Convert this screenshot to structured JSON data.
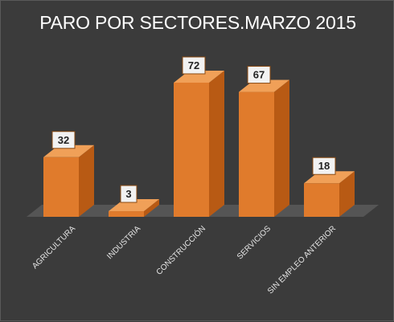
{
  "chart_data": {
    "type": "bar",
    "title": "PARO POR SECTORES.MARZO 2015",
    "categories": [
      "AGRICULTURA",
      "INDUSTRIA",
      "CONSTRUCCIÓN",
      "SERVICIOS",
      "SIN EMPLEO ANTERIOR"
    ],
    "values": [
      32,
      3,
      72,
      67,
      18
    ],
    "data_labels": [
      "32",
      "3",
      "72",
      "67",
      "18"
    ],
    "legend": "none",
    "grid": false,
    "style": "3d-column"
  },
  "colors": {
    "background": "#3b3b3b",
    "floor": "#555555",
    "bar_front": "#e07b2c",
    "bar_side": "#b85a14",
    "bar_top": "#f0a058",
    "label_box_fill": "#f2f2f2",
    "label_box_border": "#8a4a12",
    "label_text": "#222222",
    "axis_text": "#e6e6e6",
    "title_text": "#ffffff"
  }
}
